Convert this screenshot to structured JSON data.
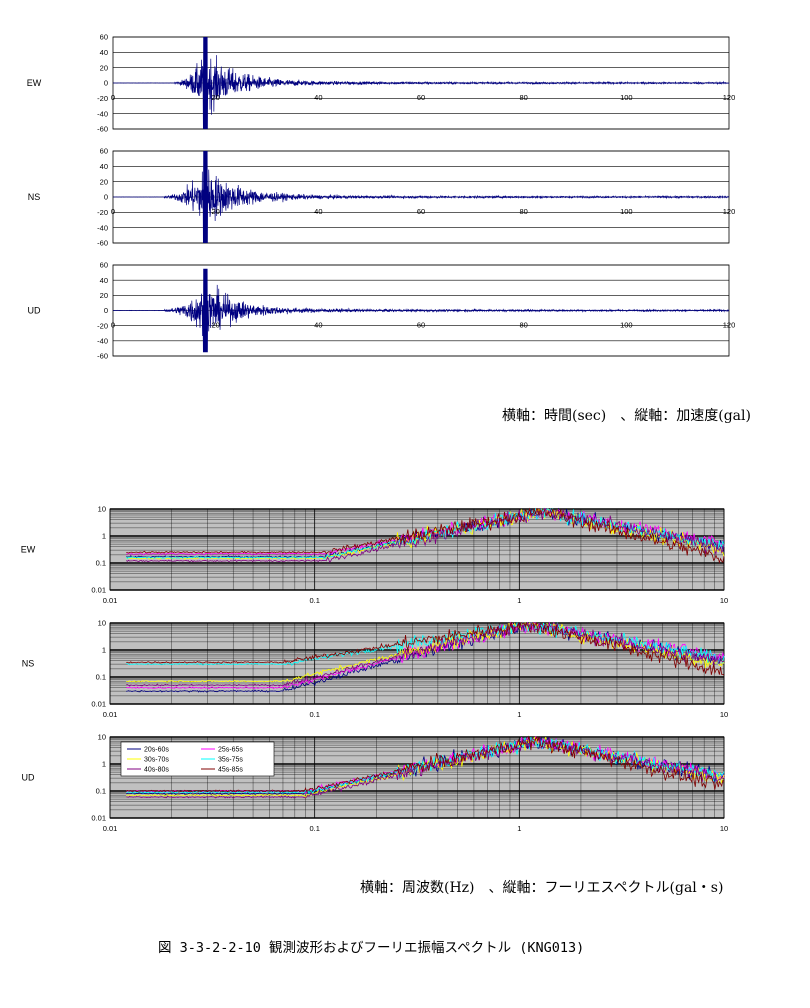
{
  "chart_data": [
    {
      "type": "line",
      "component": "EW",
      "x_ticks": [
        "0",
        "20",
        "40",
        "60",
        "80",
        "100",
        "120"
      ],
      "y_ticks": [
        "60",
        "40",
        "20",
        "0",
        "-20",
        "-40",
        "-60"
      ],
      "xlim": [
        0,
        120
      ],
      "ylim": [
        -60,
        60
      ],
      "grid": true,
      "series": [
        {
          "color": "#000080",
          "onset_s": 12,
          "peak_s": 18,
          "peak_abs_gal": 62,
          "coda_end_s": 120
        }
      ]
    },
    {
      "type": "line",
      "component": "NS",
      "x_ticks": [
        "0",
        "20",
        "40",
        "60",
        "80",
        "100",
        "120"
      ],
      "y_ticks": [
        "60",
        "40",
        "20",
        "0",
        "-20",
        "-40",
        "-60"
      ],
      "xlim": [
        0,
        120
      ],
      "ylim": [
        -60,
        60
      ],
      "grid": true,
      "series": [
        {
          "color": "#000080",
          "onset_s": 10,
          "peak_s": 18,
          "peak_abs_gal": 60,
          "coda_end_s": 120
        }
      ]
    },
    {
      "type": "line",
      "component": "UD",
      "x_ticks": [
        "0",
        "20",
        "40",
        "60",
        "80",
        "100",
        "120"
      ],
      "y_ticks": [
        "60",
        "40",
        "20",
        "0",
        "-20",
        "-40",
        "-60"
      ],
      "xlim": [
        0,
        120
      ],
      "ylim": [
        -60,
        60
      ],
      "grid": true,
      "series": [
        {
          "color": "#000080",
          "onset_s": 10,
          "peak_s": 18,
          "peak_abs_gal": 55,
          "coda_end_s": 120
        }
      ]
    },
    {
      "type": "line",
      "component": "EW",
      "xscale": "log",
      "yscale": "log",
      "x_ticks": [
        "0.01",
        "0.1",
        "1",
        "10"
      ],
      "y_ticks": [
        "10",
        "1",
        "0.1",
        "0.01"
      ],
      "xlim": [
        0.01,
        10
      ],
      "ylim": [
        0.01,
        10
      ],
      "grid": true,
      "plot_background": "#c0c0c0",
      "spectrum": {
        "f_min": 0.012,
        "low_levels": [
          0.17,
          0.22,
          0.15,
          0.16,
          0.12,
          0.25
        ],
        "rise_start_hz": 0.11,
        "peak_hz": 1.3,
        "peak_level": 8,
        "at_10hz": [
          0.4,
          0.55,
          0.3,
          0.45,
          0.35,
          0.15
        ]
      }
    },
    {
      "type": "line",
      "component": "NS",
      "xscale": "log",
      "yscale": "log",
      "x_ticks": [
        "0.01",
        "0.1",
        "1",
        "10"
      ],
      "y_ticks": [
        "10",
        "1",
        "0.1",
        "0.01"
      ],
      "xlim": [
        0.01,
        10
      ],
      "ylim": [
        0.01,
        10
      ],
      "grid": true,
      "plot_background": "#c0c0c0",
      "spectrum": {
        "f_min": 0.012,
        "low_levels": [
          0.03,
          0.04,
          0.07,
          0.3,
          0.05,
          0.35
        ],
        "rise_start_hz": 0.07,
        "peak_hz": 1.1,
        "peak_level": 9,
        "at_10hz": [
          0.4,
          0.5,
          0.3,
          0.45,
          0.35,
          0.15
        ]
      }
    },
    {
      "type": "line",
      "component": "UD",
      "xscale": "log",
      "yscale": "log",
      "x_ticks": [
        "0.01",
        "0.1",
        "1",
        "10"
      ],
      "y_ticks": [
        "10",
        "1",
        "0.1",
        "0.01"
      ],
      "xlim": [
        0.01,
        10
      ],
      "ylim": [
        0.01,
        10
      ],
      "grid": true,
      "plot_background": "#c0c0c0",
      "legend": {
        "placement": "top-left"
      },
      "spectrum": {
        "f_min": 0.012,
        "low_levels": [
          0.08,
          0.1,
          0.07,
          0.09,
          0.06,
          0.1
        ],
        "rise_start_hz": 0.09,
        "peak_hz": 1.2,
        "peak_level": 7,
        "at_10hz": [
          0.3,
          0.4,
          0.25,
          0.35,
          0.3,
          0.15
        ]
      }
    }
  ],
  "spectrum_series": [
    {
      "name": "20s-60s",
      "color": "#000080"
    },
    {
      "name": "25s-65s",
      "color": "#ff00ff"
    },
    {
      "name": "30s-70s",
      "color": "#ffff00"
    },
    {
      "name": "35s-75s",
      "color": "#00ffff"
    },
    {
      "name": "40s-80s",
      "color": "#800080"
    },
    {
      "name": "45s-85s",
      "color": "#800000"
    }
  ],
  "notes": {
    "waveform_axes": "横軸：時間(sec)　、縦軸：加速度(gal)",
    "spectrum_axes": "横軸：周波数(Hz)　、縦軸：フーリエスペクトル(gal・s)"
  },
  "caption": "図 3-3-2-2-10  観測波形およびフーリエ振幅スペクトル (KNG013)"
}
